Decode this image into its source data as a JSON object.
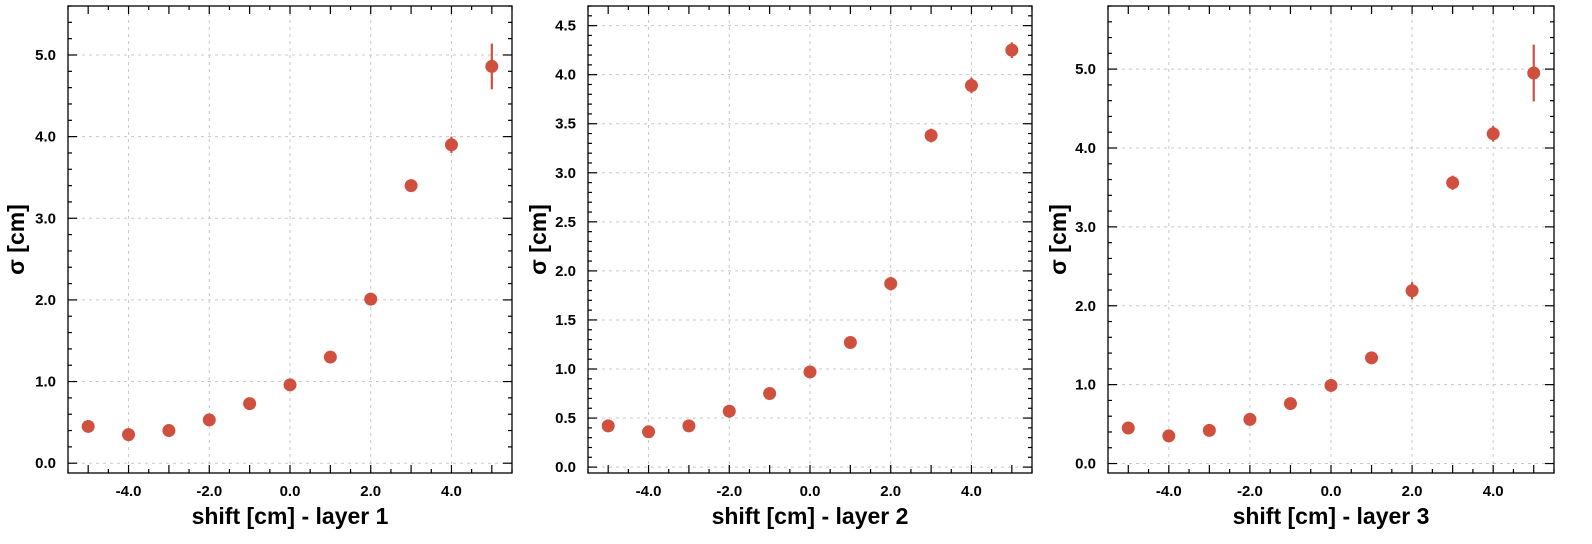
{
  "chart_data": [
    {
      "type": "scatter",
      "xlabel": "shift [cm] - layer 1",
      "ylabel": "σ [cm]",
      "xlim": [
        -5.5,
        5.5
      ],
      "ylim": [
        -0.12,
        5.6
      ],
      "xticks": [
        -4.0,
        -2.0,
        0.0,
        2.0,
        4.0
      ],
      "xtick_labels": [
        "-4.0",
        "-2.0",
        "0.0",
        "2.0",
        "4.0"
      ],
      "yticks": [
        0.0,
        1.0,
        2.0,
        3.0,
        4.0,
        5.0
      ],
      "ytick_labels": [
        "0.0",
        "1.0",
        "2.0",
        "3.0",
        "4.0",
        "5.0"
      ],
      "grid": true,
      "color": "#d05040",
      "x": [
        -5,
        -4,
        -3,
        -2,
        -1,
        0,
        1,
        2,
        3,
        4,
        5
      ],
      "y": [
        0.45,
        0.35,
        0.4,
        0.53,
        0.73,
        0.96,
        1.3,
        2.01,
        3.4,
        3.9,
        4.86
      ],
      "yerr": [
        0.02,
        0.02,
        0.02,
        0.03,
        0.03,
        0.04,
        0.05,
        0.07,
        0.05,
        0.1,
        0.28
      ]
    },
    {
      "type": "scatter",
      "xlabel": "shift [cm] - layer 2",
      "ylabel": "σ [cm]",
      "xlim": [
        -5.5,
        5.5
      ],
      "ylim": [
        -0.06,
        4.7
      ],
      "xticks": [
        -4.0,
        -2.0,
        0.0,
        2.0,
        4.0
      ],
      "xtick_labels": [
        "-4.0",
        "-2.0",
        "0.0",
        "2.0",
        "4.0"
      ],
      "yticks": [
        0.0,
        0.5,
        1.0,
        1.5,
        2.0,
        2.5,
        3.0,
        3.5,
        4.0,
        4.5
      ],
      "ytick_labels": [
        "0.0",
        "0.5",
        "1.0",
        "1.5",
        "2.0",
        "2.5",
        "3.0",
        "3.5",
        "4.0",
        "4.5"
      ],
      "grid": true,
      "color": "#d05040",
      "x": [
        -5,
        -4,
        -3,
        -2,
        -1,
        0,
        1,
        2,
        3,
        4,
        5
      ],
      "y": [
        0.42,
        0.36,
        0.42,
        0.57,
        0.75,
        0.97,
        1.27,
        1.87,
        3.38,
        3.89,
        4.25
      ],
      "yerr": [
        0.02,
        0.02,
        0.02,
        0.03,
        0.03,
        0.03,
        0.04,
        0.07,
        0.07,
        0.08,
        0.08
      ]
    },
    {
      "type": "scatter",
      "xlabel": "shift [cm] - layer 3",
      "ylabel": "σ [cm]",
      "xlim": [
        -5.5,
        5.5
      ],
      "ylim": [
        -0.12,
        5.8
      ],
      "xticks": [
        -4.0,
        -2.0,
        0.0,
        2.0,
        4.0
      ],
      "xtick_labels": [
        "-4.0",
        "-2.0",
        "0.0",
        "2.0",
        "4.0"
      ],
      "yticks": [
        0.0,
        1.0,
        2.0,
        3.0,
        4.0,
        5.0
      ],
      "ytick_labels": [
        "0.0",
        "1.0",
        "2.0",
        "3.0",
        "4.0",
        "5.0"
      ],
      "grid": true,
      "color": "#d05040",
      "x": [
        -5,
        -4,
        -3,
        -2,
        -1,
        0,
        1,
        2,
        3,
        4,
        5
      ],
      "y": [
        0.45,
        0.35,
        0.42,
        0.56,
        0.76,
        0.99,
        1.34,
        2.19,
        3.56,
        4.18,
        4.95
      ],
      "yerr": [
        0.02,
        0.02,
        0.02,
        0.03,
        0.03,
        0.04,
        0.04,
        0.11,
        0.09,
        0.1,
        0.36
      ]
    }
  ]
}
